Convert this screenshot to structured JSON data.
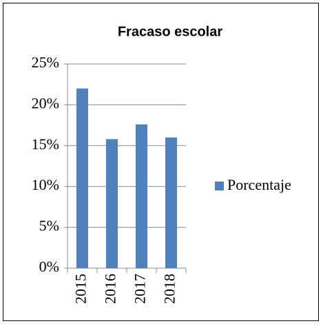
{
  "chart_data": {
    "type": "bar",
    "title": "Fracaso escolar",
    "categories": [
      "2015",
      "2016",
      "2017",
      "2018"
    ],
    "series": [
      {
        "name": "Porcentaje",
        "color": "#4f81bd",
        "values": [
          22,
          15.8,
          17.6,
          16
        ]
      }
    ],
    "ylim": [
      0,
      25
    ],
    "yticks": [
      {
        "value": 0,
        "label": "0%"
      },
      {
        "value": 5,
        "label": "5%"
      },
      {
        "value": 10,
        "label": "10%"
      },
      {
        "value": 15,
        "label": "15%"
      },
      {
        "value": 20,
        "label": "20%"
      },
      {
        "value": 25,
        "label": "25%"
      }
    ],
    "grid": true,
    "legend": "right"
  }
}
